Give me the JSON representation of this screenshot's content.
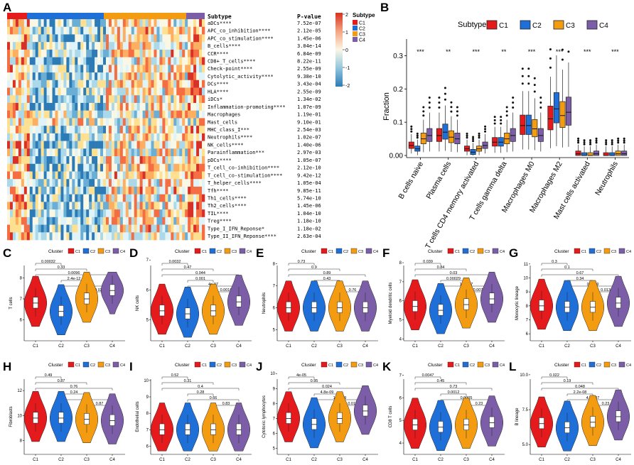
{
  "colors": {
    "C1": "#e41a1c",
    "C2": "#1f6fd9",
    "C3": "#f39c12",
    "C4": "#7b5ea7"
  },
  "panel_a": {
    "letter": "A",
    "legend_title": "Subtype",
    "pvalue_header": "P-value",
    "color_scale_ticks": [
      "2",
      "1",
      "0",
      "-1",
      "-2"
    ],
    "subtypes": [
      "C1",
      "C2",
      "C3",
      "C4"
    ],
    "rows": [
      {
        "label": "aDCs****",
        "p": "7.52e-07"
      },
      {
        "label": "APC_co_inhibition****",
        "p": "2.12e-05"
      },
      {
        "label": "APC_co_stimulation****",
        "p": "1.45e-06"
      },
      {
        "label": "B_cells****",
        "p": "3.04e-14"
      },
      {
        "label": "CCR****",
        "p": "6.84e-09"
      },
      {
        "label": "CD8+_T_cells****",
        "p": "8.22e-11"
      },
      {
        "label": "Check-point****",
        "p": "2.55e-09"
      },
      {
        "label": "Cytolytic_activity****",
        "p": "9.38e-10"
      },
      {
        "label": "DCs****",
        "p": "3.43e-04"
      },
      {
        "label": "HLA****",
        "p": "2.55e-09"
      },
      {
        "label": "iDCs*",
        "p": "1.34e-02"
      },
      {
        "label": "Inflammation-promoting****",
        "p": "1.07e-09"
      },
      {
        "label": "Macrophages",
        "p": "1.19e-01"
      },
      {
        "label": "Mast_cells",
        "p": "9.10e-01"
      },
      {
        "label": "MHC_class_I***",
        "p": "2.54e-03"
      },
      {
        "label": "Neutrophils****",
        "p": "1.02e-07"
      },
      {
        "label": "NK_cells****",
        "p": "1.40e-06"
      },
      {
        "label": "Parainflammation***",
        "p": "2.97e-03"
      },
      {
        "label": "pDCs****",
        "p": "1.05e-07"
      },
      {
        "label": "T_cell_co-inhibition****",
        "p": "2.12e-10"
      },
      {
        "label": "T_cell_co-stimulation****",
        "p": "9.42e-12"
      },
      {
        "label": "T_helper_cells****",
        "p": "1.05e-04"
      },
      {
        "label": "Tfh****",
        "p": "9.85e-11"
      },
      {
        "label": "Th1_cells****",
        "p": "5.74e-10"
      },
      {
        "label": "Th2_cells****",
        "p": "1.45e-06"
      },
      {
        "label": "TIL****",
        "p": "1.04e-10"
      },
      {
        "label": "Treg****",
        "p": "1.18e-10"
      },
      {
        "label": "Type_I_IFN_Reponse*",
        "p": "1.18e-02"
      },
      {
        "label": "Type_II_IFN_Reponse****",
        "p": "2.63e-04"
      }
    ]
  },
  "chart_data": [
    {
      "panel": "B",
      "type": "box",
      "legend_title": "Subtype",
      "series": [
        "C1",
        "C2",
        "C3",
        "C4"
      ],
      "ylabel": "Fraction",
      "ylim": [
        0,
        0.35
      ],
      "yticks": [
        "0.00",
        "0.1",
        "0.2",
        "0.3"
      ],
      "categories": [
        "B cells naive",
        "Plasma cells",
        "T cells CD4 memory activated",
        "T cells gamma delta",
        "Macrophages M0",
        "Macrophages M2",
        "Mast cells activated",
        "Neutrophils"
      ],
      "significance": [
        "***",
        "**",
        "***",
        "**",
        "***",
        "***",
        "***",
        "***"
      ],
      "medians": [
        [
          0.03,
          0.02,
          0.05,
          0.06
        ],
        [
          0.06,
          0.07,
          0.055,
          0.05
        ],
        [
          0.02,
          0.01,
          0.02,
          0.03
        ],
        [
          0.04,
          0.04,
          0.05,
          0.06
        ],
        [
          0.09,
          0.09,
          0.08,
          0.06
        ],
        [
          0.11,
          0.14,
          0.12,
          0.13
        ],
        [
          0.005,
          0.0,
          0.0,
          0.005
        ],
        [
          0.0,
          0.0,
          0.005,
          0.005
        ]
      ]
    },
    {
      "panel": "C",
      "type": "violin",
      "ylabel": "T cells",
      "ylim": [
        5,
        9
      ],
      "yticks": [
        "6",
        "7",
        "8"
      ],
      "medians": [
        6.8,
        6.4,
        7.0,
        7.4
      ],
      "pvals": [
        "0.00032",
        "0.33",
        "0.0096",
        "2.4e-12",
        "6.6e-11",
        "0.021"
      ]
    },
    {
      "panel": "D",
      "type": "violin",
      "ylabel": "NK cells",
      "ylim": [
        4.3,
        7.1
      ],
      "yticks": [
        "5",
        "6",
        "7"
      ],
      "medians": [
        5.3,
        5.2,
        5.3,
        5.6
      ],
      "pvals": [
        "0.0032",
        "0.47",
        "0.044",
        "0.001",
        "4e-07",
        "0.0018"
      ]
    },
    {
      "panel": "E",
      "type": "violin",
      "ylabel": "Neutrophils",
      "ylim": [
        4.5,
        8.3
      ],
      "yticks": [
        "5",
        "6",
        "7",
        "8"
      ],
      "medians": [
        6.0,
        6.0,
        6.0,
        6.0
      ],
      "pvals": [
        "0.73",
        "0.9",
        "0.89",
        "0.43",
        "0.85",
        "0.76"
      ]
    },
    {
      "panel": "F",
      "type": "violin",
      "ylabel": "Myeloid dendritic cells",
      "ylim": [
        3.9,
        8.3
      ],
      "yticks": [
        "4",
        "5",
        "6",
        "7",
        "8"
      ],
      "medians": [
        5.7,
        5.5,
        5.8,
        6.1
      ],
      "pvals": [
        "0.039",
        "0.84",
        "0.03",
        "0.00029",
        "1.5e-07",
        "0.0077"
      ]
    },
    {
      "panel": "G",
      "type": "violin",
      "ylabel": "Monocytic lineage",
      "ylim": [
        5.5,
        11.5
      ],
      "yticks": [
        "6",
        "7",
        "8",
        "9",
        "10",
        "11"
      ],
      "medians": [
        8.0,
        7.9,
        7.9,
        8.2
      ],
      "pvals": [
        "0.3",
        "0.1",
        "0.67",
        "0.34",
        "0.0019",
        "0.013"
      ]
    },
    {
      "panel": "H",
      "type": "violin",
      "ylabel": "Fibroblasts",
      "ylim": [
        6.9,
        13.6
      ],
      "yticks": [
        "8",
        "10",
        "12"
      ],
      "medians": [
        9.8,
        9.8,
        9.7,
        9.6
      ],
      "pvals": [
        "0.49",
        "0.87",
        "0.76",
        "0.24",
        "0.31",
        "0.87"
      ]
    },
    {
      "panel": "I",
      "type": "violin",
      "ylabel": "Endothelial cells",
      "ylim": [
        5.5,
        10.6
      ],
      "yticks": [
        "6",
        "7",
        "8",
        "9",
        "10"
      ],
      "medians": [
        7.0,
        7.0,
        7.0,
        7.0
      ],
      "pvals": [
        "0.52",
        "0.31",
        "0.4",
        "0.28",
        "0.66",
        "0.83"
      ]
    },
    {
      "panel": "J",
      "type": "violin",
      "ylabel": "Cytotoxic lymphocytes",
      "ylim": [
        4.6,
        10.2
      ],
      "yticks": [
        "5",
        "6",
        "7",
        "8",
        "9",
        "10"
      ],
      "medians": [
        7.0,
        6.6,
        7.0,
        7.5
      ],
      "pvals": [
        "4e-05",
        "0.95",
        "0.024",
        "4.8e-09",
        "1.1e-09",
        "0.011"
      ]
    },
    {
      "panel": "K",
      "type": "violin",
      "ylabel": "CD8 T cells",
      "ylim": [
        3.5,
        7.2
      ],
      "yticks": [
        "4",
        "5",
        "6",
        "7"
      ],
      "medians": [
        4.8,
        4.7,
        4.8,
        4.9
      ],
      "pvals": [
        "0.0047",
        "0.45",
        "0.73",
        "0.0012",
        "0.0005",
        "0.23"
      ]
    },
    {
      "panel": "L",
      "type": "violin",
      "ylabel": "B lineage",
      "ylim": [
        4.3,
        10.3
      ],
      "yticks": [
        "5.0",
        "7.5",
        "10.0"
      ],
      "medians": [
        6.5,
        6.2,
        6.6,
        7.0
      ],
      "pvals": [
        "0.022",
        "0.19",
        "0.048",
        "2.2e-08",
        "4.9e-07",
        "0.23"
      ]
    }
  ],
  "violin_common": {
    "legend_title": "Cluster",
    "clusters": [
      "C1",
      "C2",
      "C3",
      "C4"
    ]
  }
}
